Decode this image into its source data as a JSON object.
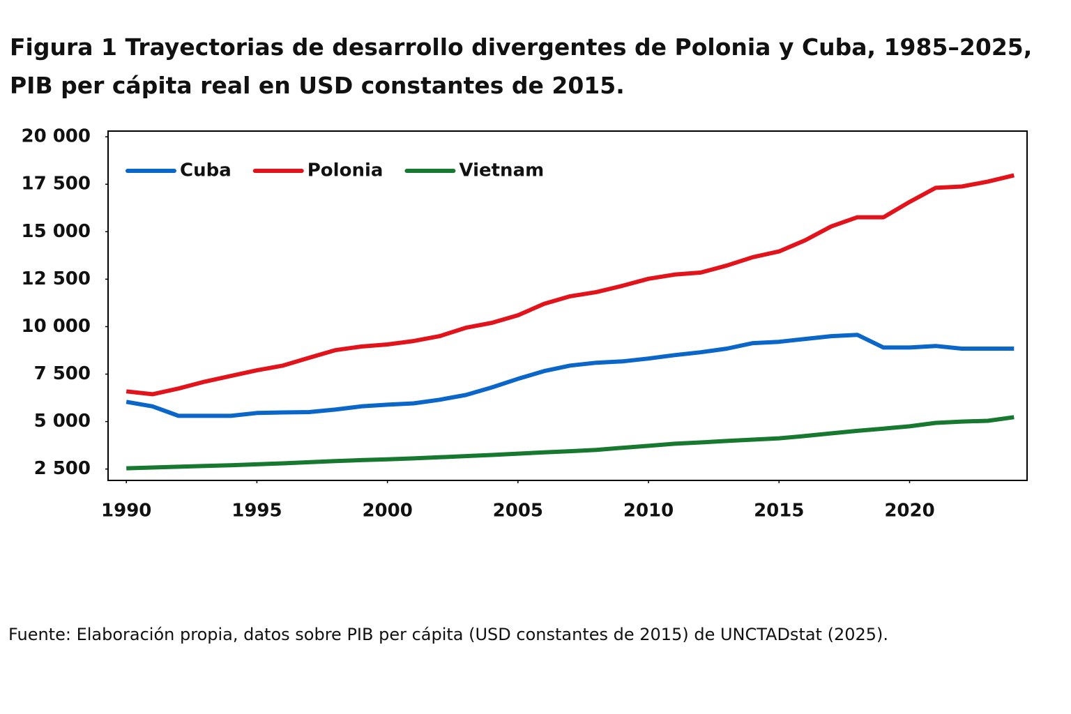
{
  "chart_data": {
    "type": "line",
    "title": "Figura 1 Trayectorias de desarrollo divergentes de Polonia y Cuba, 1985–2025, PIB per cápita real en USD constantes de 2015.",
    "source": "Fuente: Elaboración propia, datos sobre PIB per cápita (USD constantes de 2015) de UNCTADstat (2025).",
    "x": [
      1990,
      1991,
      1992,
      1993,
      1994,
      1995,
      1996,
      1997,
      1998,
      1999,
      2000,
      2001,
      2002,
      2003,
      2004,
      2005,
      2006,
      2007,
      2008,
      2009,
      2010,
      2011,
      2012,
      2013,
      2014,
      2015,
      2016,
      2017,
      2018,
      2019,
      2020,
      2021,
      2022,
      2023,
      2024
    ],
    "xlim": [
      1989.3,
      2024.5
    ],
    "xticks": [
      1990,
      1995,
      2000,
      2005,
      2010,
      2015,
      2020
    ],
    "ylim": [
      1900,
      20300
    ],
    "yticks": [
      {
        "value": 2500,
        "label": "2 500"
      },
      {
        "value": 5000,
        "label": "5 000"
      },
      {
        "value": 7500,
        "label": "7 500"
      },
      {
        "value": 10000,
        "label": "10 000"
      },
      {
        "value": 12500,
        "label": "12 500"
      },
      {
        "value": 15000,
        "label": "15 000"
      },
      {
        "value": 17500,
        "label": "17 500"
      },
      {
        "value": 20000,
        "label": "20 000"
      }
    ],
    "grid": false,
    "legend": "top-left",
    "series": [
      {
        "name": "Cuba",
        "color": "#0a66c9",
        "values": [
          6040,
          5800,
          5300,
          5300,
          5300,
          5450,
          5480,
          5500,
          5630,
          5800,
          5890,
          5960,
          6150,
          6400,
          6800,
          7250,
          7660,
          7950,
          8100,
          8170,
          8320,
          8500,
          8650,
          8840,
          9130,
          9200,
          9350,
          9500,
          9570,
          8900,
          8900,
          8980,
          8840,
          8840,
          8840
        ]
      },
      {
        "name": "Polonia",
        "color": "#e3131b",
        "values": [
          6590,
          6440,
          6740,
          7100,
          7400,
          7700,
          7950,
          8360,
          8760,
          8950,
          9060,
          9240,
          9500,
          9940,
          10200,
          10600,
          11200,
          11600,
          11820,
          12150,
          12520,
          12740,
          12850,
          13220,
          13660,
          13960,
          14550,
          15280,
          15760,
          15760,
          16570,
          17310,
          17380,
          17640,
          17970
        ]
      },
      {
        "name": "Vietnam",
        "color": "#17782f",
        "values": [
          2540,
          2580,
          2620,
          2660,
          2700,
          2750,
          2800,
          2860,
          2920,
          2970,
          3010,
          3060,
          3120,
          3180,
          3240,
          3310,
          3380,
          3440,
          3510,
          3620,
          3720,
          3830,
          3900,
          3980,
          4050,
          4120,
          4240,
          4380,
          4510,
          4630,
          4750,
          4930,
          5000,
          5040,
          5230
        ]
      }
    ]
  }
}
